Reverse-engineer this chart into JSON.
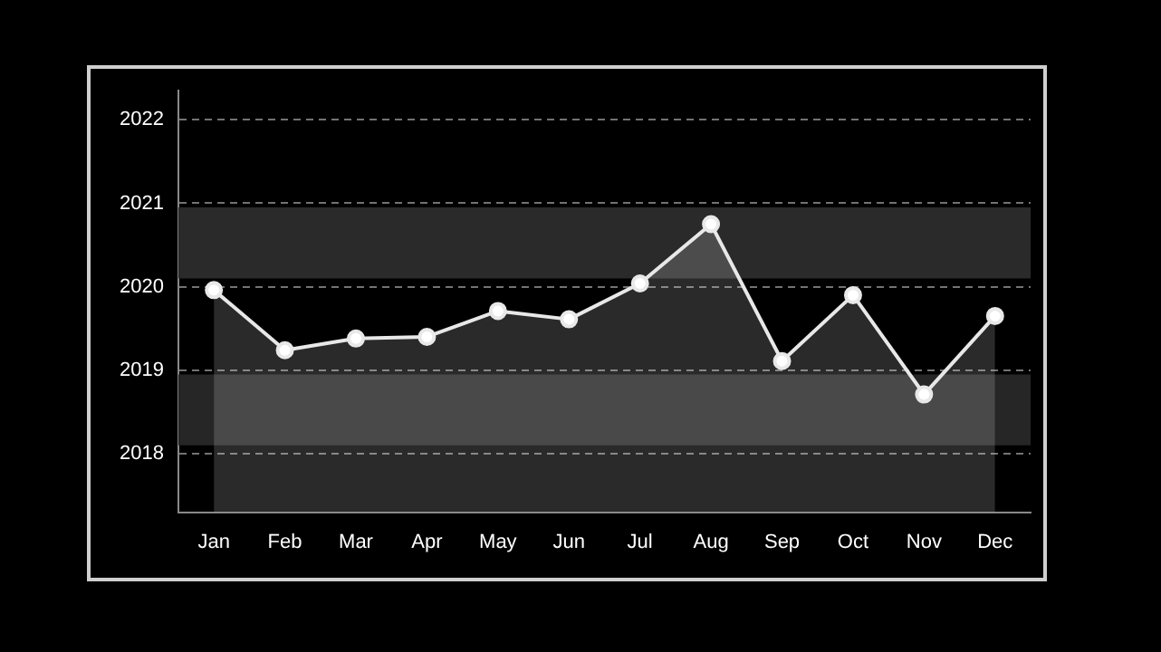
{
  "chart_data": {
    "type": "area",
    "categories": [
      "Jan",
      "Feb",
      "Mar",
      "Apr",
      "May",
      "Jun",
      "Jul",
      "Aug",
      "Sep",
      "Oct",
      "Nov",
      "Dec"
    ],
    "series": [
      {
        "color": "#e8e8e8",
        "values": [
          2019.96,
          2019.24,
          2019.38,
          2019.4,
          2019.71,
          2019.61,
          2020.04,
          2020.75,
          2019.11,
          2019.9,
          2018.71,
          2019.65
        ]
      }
    ],
    "ylim": [
      2017.3,
      2022.35
    ],
    "yticks": [
      2018,
      2019,
      2020,
      2021,
      2022
    ],
    "bands": [
      {
        "axis": "y",
        "from": 2020.1,
        "to": 2020.95,
        "color": "#2a2a2a"
      },
      {
        "axis": "y",
        "from": 2018.1,
        "to": 2018.95,
        "color": "#262626"
      }
    ],
    "grid": "y",
    "legend": false,
    "marker": "circle",
    "line_style": "solid"
  }
}
